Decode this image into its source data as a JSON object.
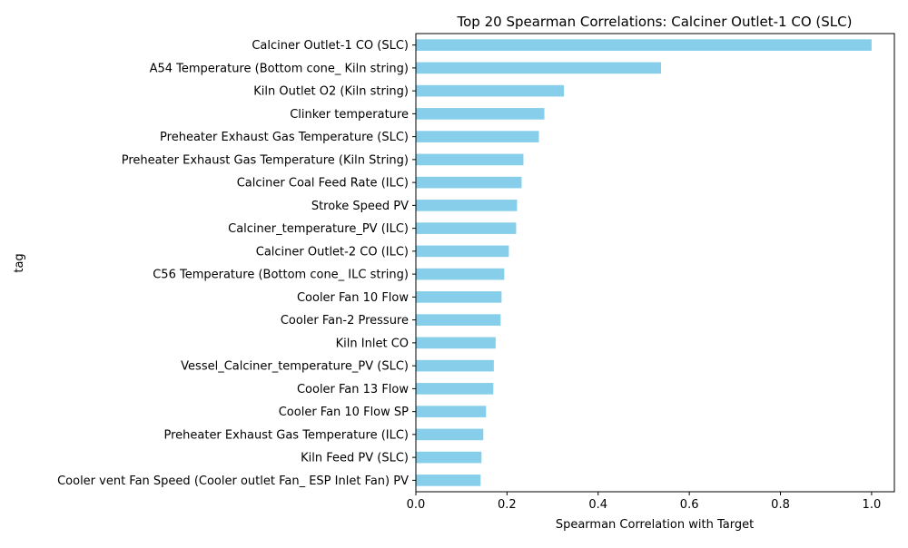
{
  "chart_data": {
    "type": "bar",
    "orientation": "horizontal",
    "title": "Top 20 Spearman Correlations: Calciner Outlet-1 CO (SLC)",
    "xlabel": "Spearman Correlation with Target",
    "ylabel": "tag",
    "xlim": [
      0,
      1.05
    ],
    "xticks": [
      "0.0",
      "0.2",
      "0.4",
      "0.6",
      "0.8",
      "1.0"
    ],
    "xtick_values": [
      0,
      0.2,
      0.4,
      0.6,
      0.8,
      1.0
    ],
    "grid": false,
    "bar_color": "#87CEEB",
    "categories": [
      "Calciner Outlet-1 CO (SLC)",
      "A54 Temperature (Bottom cone_ Kiln string)",
      "Kiln Outlet O2 (Kiln string)",
      "Clinker temperature",
      "Preheater Exhaust Gas Temperature (SLC)",
      "Preheater Exhaust Gas Temperature  (Kiln String)",
      "Calciner Coal Feed Rate (ILC)",
      "Stroke Speed PV",
      "Calciner_temperature_PV (ILC)",
      "Calciner Outlet-2 CO (ILC)",
      "C56 Temperature (Bottom cone_ ILC string)",
      "Cooler Fan 10 Flow",
      "Cooler Fan-2 Pressure",
      "Kiln Inlet CO",
      "Vessel_Calciner_temperature_PV (SLC)",
      "Cooler Fan 13 Flow",
      "Cooler Fan 10 Flow SP",
      "Preheater Exhaust Gas Temperature (ILC)",
      "Kiln Feed PV (SLC)",
      "Cooler vent Fan Speed (Cooler outlet Fan_ ESP Inlet Fan) PV"
    ],
    "values": [
      1.0,
      0.538,
      0.325,
      0.282,
      0.27,
      0.236,
      0.232,
      0.222,
      0.22,
      0.204,
      0.194,
      0.188,
      0.186,
      0.175,
      0.171,
      0.17,
      0.154,
      0.148,
      0.144,
      0.142
    ]
  }
}
